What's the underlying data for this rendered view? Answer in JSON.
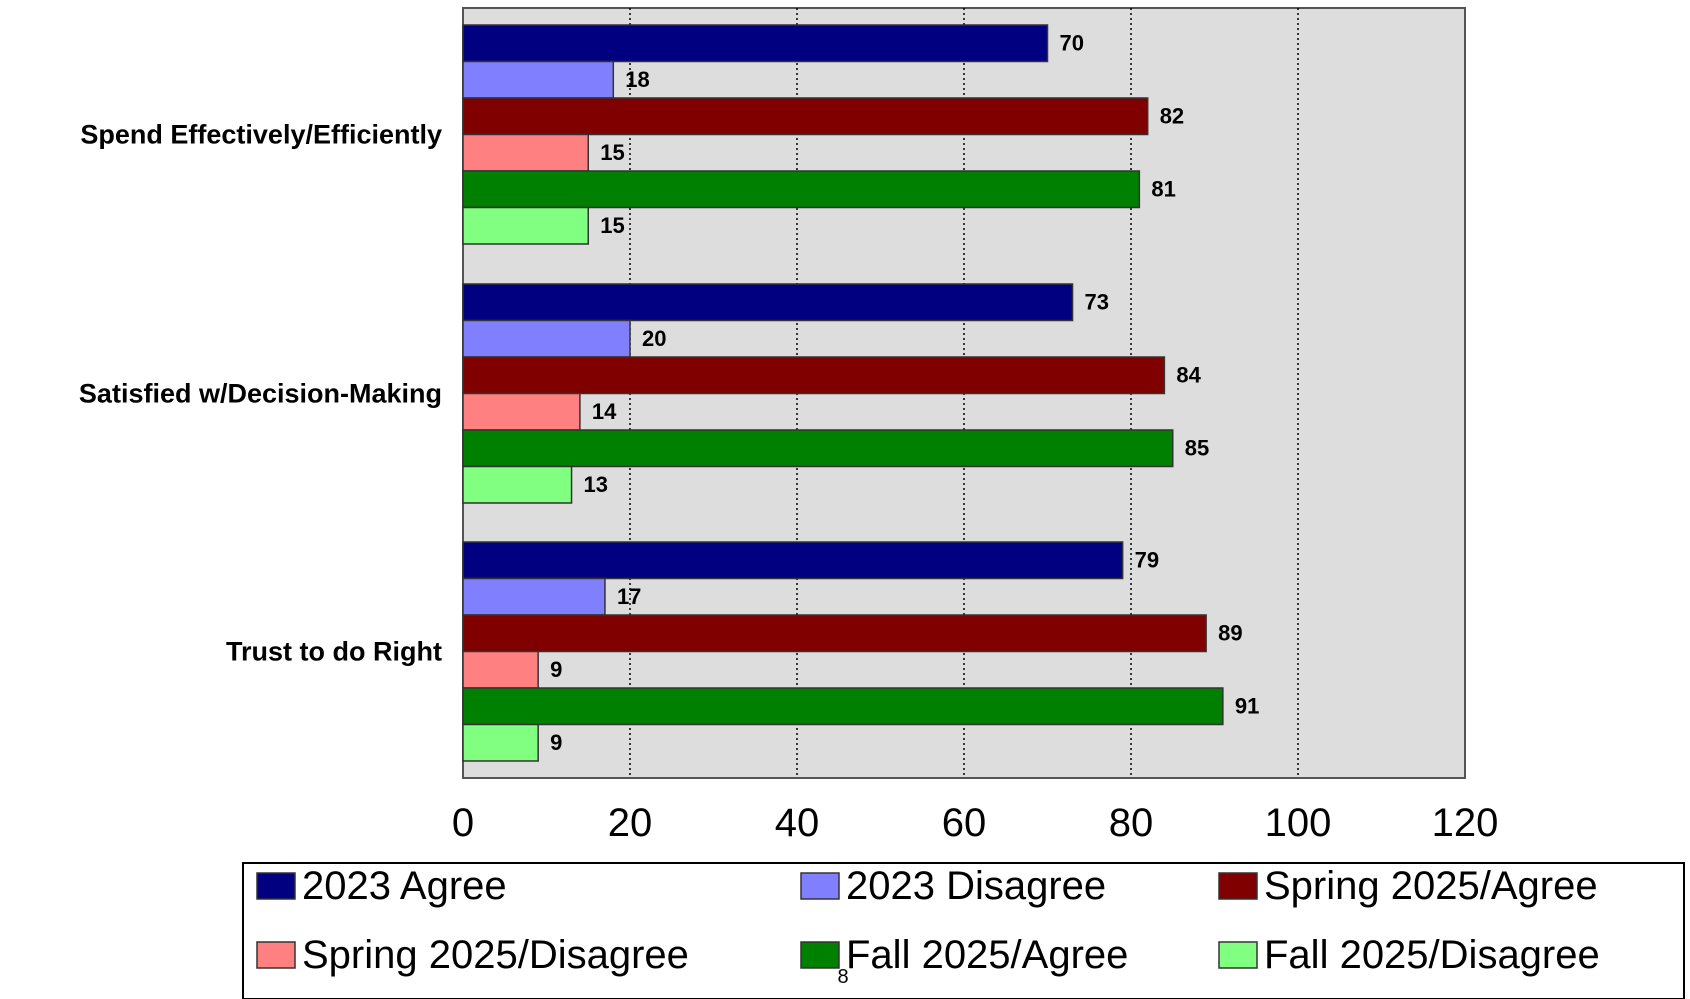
{
  "chart_data": {
    "type": "bar",
    "orientation": "horizontal",
    "categories": [
      "Spend Effectively/Efficiently",
      "Satisfied w/Decision-Making",
      "Trust to do Right"
    ],
    "series": [
      {
        "name": "2023 Agree",
        "color": "#000080",
        "values": [
          70,
          73,
          79
        ]
      },
      {
        "name": "2023 Disagree",
        "color": "#8080FF",
        "values": [
          18,
          20,
          17
        ]
      },
      {
        "name": "Spring 2025/Agree",
        "color": "#800000",
        "values": [
          82,
          84,
          89
        ]
      },
      {
        "name": "Spring 2025/Disagree",
        "color": "#FF8080",
        "values": [
          15,
          14,
          9
        ]
      },
      {
        "name": "Fall 2025/Agree",
        "color": "#008000",
        "values": [
          81,
          85,
          91
        ]
      },
      {
        "name": "Fall 2025/Disagree",
        "color": "#80FF80",
        "values": [
          15,
          13,
          9
        ]
      }
    ],
    "xlim": [
      0,
      120
    ],
    "xticks": [
      0,
      20,
      40,
      60,
      80,
      100,
      120
    ],
    "grid": "vertical dotted",
    "plot_background": "#DDDDDD",
    "legend_position": "bottom"
  },
  "page_number": "8"
}
